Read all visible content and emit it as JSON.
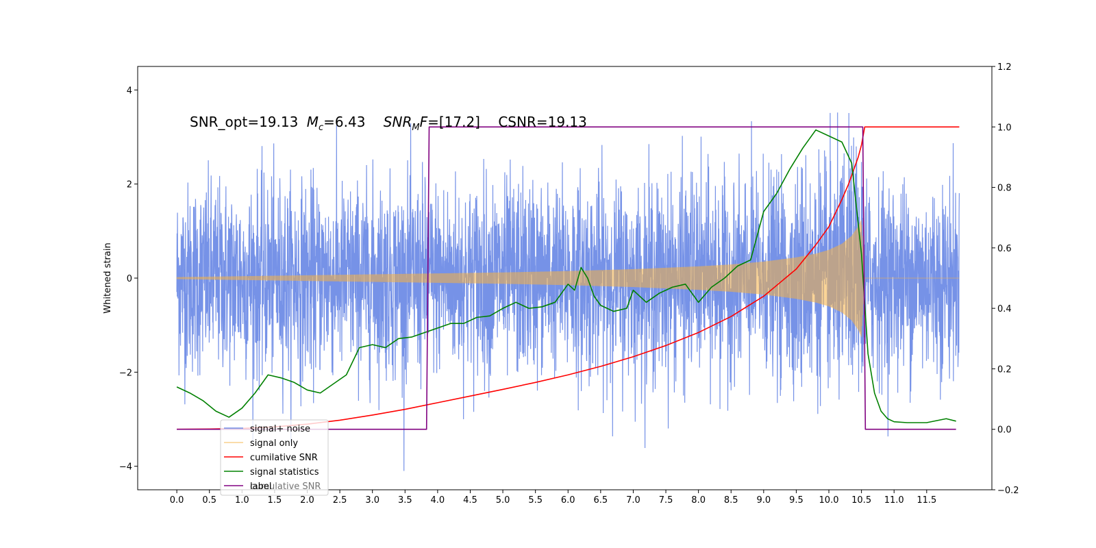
{
  "chart_data": {
    "type": "line",
    "title": "",
    "xlabel": "",
    "ylabel": "Whitened strain",
    "xlim": [
      -0.6,
      12.5
    ],
    "ylim": [
      -4.5,
      4.5
    ],
    "ylim_right": [
      -0.2,
      1.2
    ],
    "x_ticks": [
      "0.0",
      "0.5",
      "1.0",
      "1.5",
      "2.0",
      "2.5",
      "3.0",
      "3.5",
      "4.0",
      "4.5",
      "5.0",
      "5.5",
      "6.0",
      "6.5",
      "7.0",
      "7.5",
      "8.0",
      "8.5",
      "9.0",
      "9.5",
      "10.0",
      "10.5",
      "11.0",
      "11.5"
    ],
    "y_ticks_left": [
      "−4",
      "−2",
      "0",
      "2",
      "4"
    ],
    "y_ticks_right": [
      "−0.2",
      "0.0",
      "0.2",
      "0.4",
      "0.6",
      "0.8",
      "1.0",
      "1.2"
    ],
    "grid": false,
    "legend_position": "lower-left",
    "annotation": {
      "snr_opt": "SNR_opt=19.13",
      "mc_symbol": "M",
      "mc_sub": "c",
      "mc_value": "=6.43",
      "snrmf_symbol": "SNR",
      "snrmf_sub": "M",
      "snrmf_letter": "F",
      "snrmf_value": "=[17.2]",
      "csnr": "CSNR=19.13"
    },
    "legend_ghost": "cumulative SNR",
    "noise_band": {
      "x_range": [
        0.0,
        12.0
      ],
      "typical_amplitude": 1.3,
      "max_amplitude": 4.1
    },
    "chirp_envelope": {
      "x": [
        0.0,
        1.0,
        2.0,
        3.0,
        4.0,
        5.0,
        6.0,
        7.0,
        8.0,
        8.5,
        9.0,
        9.5,
        9.8,
        10.0,
        10.2,
        10.35,
        10.45,
        10.5,
        10.55
      ],
      "amplitude": [
        0.02,
        0.04,
        0.06,
        0.08,
        0.1,
        0.12,
        0.15,
        0.19,
        0.25,
        0.29,
        0.35,
        0.44,
        0.52,
        0.6,
        0.73,
        0.9,
        1.1,
        1.25,
        0.0
      ]
    },
    "series": [
      {
        "name": "signal+ noise",
        "color": "#6f8ce6",
        "axis": "left"
      },
      {
        "name": "signal only",
        "color": "#f5b041",
        "axis": "left"
      },
      {
        "name": "cumilative SNR",
        "color": "#ff0000",
        "axis": "right",
        "x": [
          0.0,
          0.5,
          1.0,
          1.5,
          2.0,
          2.5,
          3.0,
          3.5,
          4.0,
          4.5,
          5.0,
          5.5,
          6.0,
          6.5,
          7.0,
          7.5,
          8.0,
          8.5,
          9.0,
          9.5,
          9.8,
          10.0,
          10.2,
          10.3,
          10.4,
          10.45,
          10.5,
          10.55,
          11.0,
          11.5,
          12.0
        ],
        "values": [
          0.0,
          0.001,
          0.003,
          0.008,
          0.017,
          0.03,
          0.047,
          0.066,
          0.088,
          0.11,
          0.132,
          0.155,
          0.18,
          0.208,
          0.24,
          0.277,
          0.32,
          0.373,
          0.44,
          0.53,
          0.61,
          0.67,
          0.76,
          0.81,
          0.87,
          0.9,
          0.94,
          1.0,
          1.0,
          1.0,
          1.0
        ]
      },
      {
        "name": "signal statistics",
        "color": "#008000",
        "axis": "right",
        "x": [
          0.0,
          0.2,
          0.4,
          0.6,
          0.8,
          1.0,
          1.2,
          1.4,
          1.6,
          1.8,
          2.0,
          2.2,
          2.4,
          2.6,
          2.8,
          3.0,
          3.2,
          3.4,
          3.6,
          3.8,
          4.0,
          4.2,
          4.4,
          4.6,
          4.8,
          5.0,
          5.2,
          5.4,
          5.6,
          5.8,
          6.0,
          6.1,
          6.2,
          6.3,
          6.4,
          6.5,
          6.7,
          6.9,
          7.0,
          7.2,
          7.4,
          7.6,
          7.8,
          8.0,
          8.2,
          8.4,
          8.6,
          8.8,
          9.0,
          9.2,
          9.4,
          9.6,
          9.8,
          10.0,
          10.2,
          10.35,
          10.5,
          10.6,
          10.7,
          10.8,
          10.9,
          11.0,
          11.2,
          11.5,
          11.8,
          11.95
        ],
        "values": [
          0.14,
          0.12,
          0.095,
          0.06,
          0.04,
          0.07,
          0.12,
          0.18,
          0.17,
          0.155,
          0.13,
          0.12,
          0.15,
          0.18,
          0.27,
          0.28,
          0.27,
          0.3,
          0.305,
          0.32,
          0.335,
          0.35,
          0.35,
          0.37,
          0.375,
          0.4,
          0.42,
          0.4,
          0.405,
          0.42,
          0.48,
          0.46,
          0.535,
          0.5,
          0.44,
          0.41,
          0.39,
          0.4,
          0.46,
          0.42,
          0.45,
          0.47,
          0.48,
          0.42,
          0.47,
          0.5,
          0.54,
          0.56,
          0.72,
          0.78,
          0.86,
          0.93,
          0.99,
          0.97,
          0.95,
          0.88,
          0.58,
          0.25,
          0.12,
          0.06,
          0.035,
          0.025,
          0.022,
          0.022,
          0.035,
          0.027
        ]
      },
      {
        "name": "label",
        "color": "#800080",
        "axis": "right",
        "x": [
          0.0,
          3.83,
          3.87,
          10.52,
          10.56,
          11.95
        ],
        "values": [
          0.0,
          0.0,
          1.0,
          1.0,
          0.0,
          0.0
        ]
      }
    ]
  }
}
